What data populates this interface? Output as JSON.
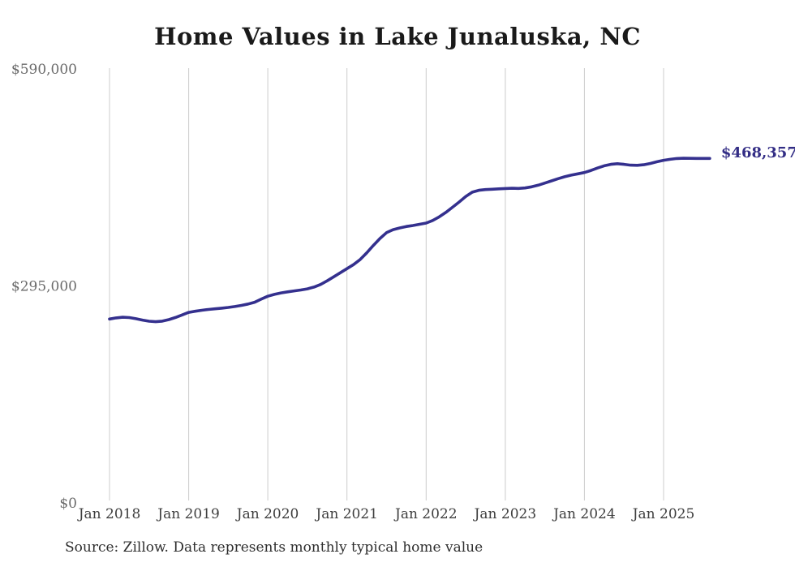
{
  "chart_data": {
    "type": "line",
    "title": "Home Values in Lake Junaluska, NC",
    "series_name": "Monthly typical home value",
    "x_start": "2018-01",
    "x_end": "2025-08",
    "x_tick_labels": [
      "Jan 2018",
      "Jan 2019",
      "Jan 2020",
      "Jan 2021",
      "Jan 2022",
      "Jan 2023",
      "Jan 2024",
      "Jan 2025"
    ],
    "y_tick_labels": [
      "$590,000",
      "$295,000",
      "$0"
    ],
    "y_tick_values": [
      590000,
      295000,
      0
    ],
    "ylim": [
      0,
      590000
    ],
    "grid": "vertical-only",
    "legend": "none",
    "end_label": "$468,357",
    "final_value": 468357,
    "source_note": "Source: Zillow. Data represents monthly typical home value",
    "monthly_values": [
      250000,
      251500,
      252400,
      252000,
      250500,
      248600,
      247000,
      246400,
      247100,
      249200,
      252100,
      255500,
      259000,
      260600,
      261900,
      263000,
      263900,
      264800,
      265800,
      267000,
      268500,
      270400,
      272800,
      277000,
      281000,
      283500,
      285500,
      287000,
      288300,
      289500,
      291000,
      293500,
      297000,
      302000,
      307500,
      313000,
      318500,
      324000,
      331000,
      340000,
      350000,
      359500,
      367500,
      371500,
      373800,
      375800,
      377200,
      378800,
      380500,
      384000,
      389000,
      395000,
      402000,
      409000,
      416500,
      422500,
      425000,
      426000,
      426500,
      427000,
      427500,
      427800,
      427600,
      428200,
      429800,
      432000,
      434800,
      437800,
      440800,
      443400,
      445600,
      447400,
      449200,
      452000,
      455300,
      458300,
      460300,
      461200,
      460300,
      459200,
      459000,
      459800,
      461500,
      463800,
      465800,
      467200,
      468200,
      468600,
      468500,
      468400,
      468350,
      468357
    ]
  },
  "colors": {
    "line": "#34308e",
    "end_label_text": "#332d85",
    "grid": "#cccccc",
    "title_text": "#1a1a1a",
    "x_tick_text": "#3e3e3e",
    "y_tick_text": "#6a6a6a",
    "source_text": "#2e2e2e",
    "background": "#ffffff"
  }
}
